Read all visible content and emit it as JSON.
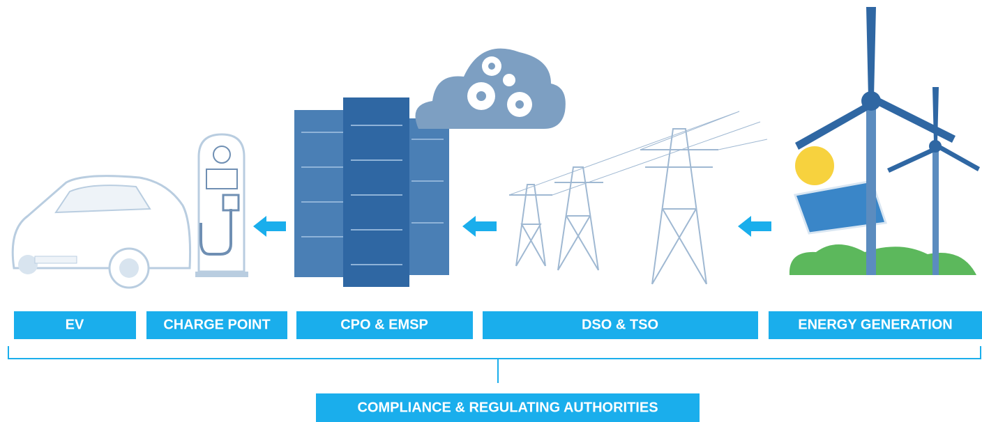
{
  "stages": [
    {
      "label": "EV"
    },
    {
      "label": "CHARGE POINT"
    },
    {
      "label": "CPO & EMSP"
    },
    {
      "label": "DSO & TSO"
    },
    {
      "label": "ENERGY GENERATION"
    }
  ],
  "footer": {
    "label": "COMPLIANCE & REGULATING AUTHORITIES"
  }
}
